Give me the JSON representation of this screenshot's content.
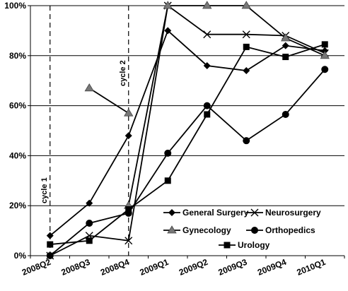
{
  "chart_data": {
    "type": "line",
    "categories": [
      "2008Q2",
      "2008Q3",
      "2008Q4",
      "2009Q1",
      "2009Q2",
      "2009Q3",
      "2009Q4",
      "2010Q1"
    ],
    "ylim": [
      0,
      100
    ],
    "yticks": [
      "0%",
      "20%",
      "40%",
      "60%",
      "80%",
      "100%"
    ],
    "grid": "horizontal",
    "legend_position": "bottom-right",
    "series": [
      {
        "name": "General Surgery",
        "marker": "diamond",
        "values": [
          8,
          21,
          48,
          90,
          76,
          74,
          84,
          82
        ]
      },
      {
        "name": "Neurosurgery",
        "marker": "x",
        "values": [
          0,
          8,
          6,
          100,
          88.5,
          88.5,
          88,
          81
        ]
      },
      {
        "name": "Gynecology",
        "marker": "triangle",
        "values": [
          null,
          67,
          57,
          null,
          null,
          null,
          null,
          null
        ]
      },
      {
        "name": "Gynecology",
        "marker": "triangle",
        "legend": false,
        "values": [
          null,
          null,
          20,
          100,
          100,
          100,
          87,
          80
        ]
      },
      {
        "name": "Orthopedics",
        "marker": "circle",
        "values": [
          0,
          13,
          17,
          41,
          60,
          46,
          56.5,
          74.5
        ]
      },
      {
        "name": "Urology",
        "marker": "square",
        "values": [
          4.5,
          6,
          18.5,
          30,
          56.5,
          83.5,
          79.5,
          84.5
        ]
      }
    ],
    "annotations": [
      {
        "text": "cycle 1",
        "category_index": 0
      },
      {
        "text": "cycle 2",
        "category_index": 2
      }
    ]
  }
}
